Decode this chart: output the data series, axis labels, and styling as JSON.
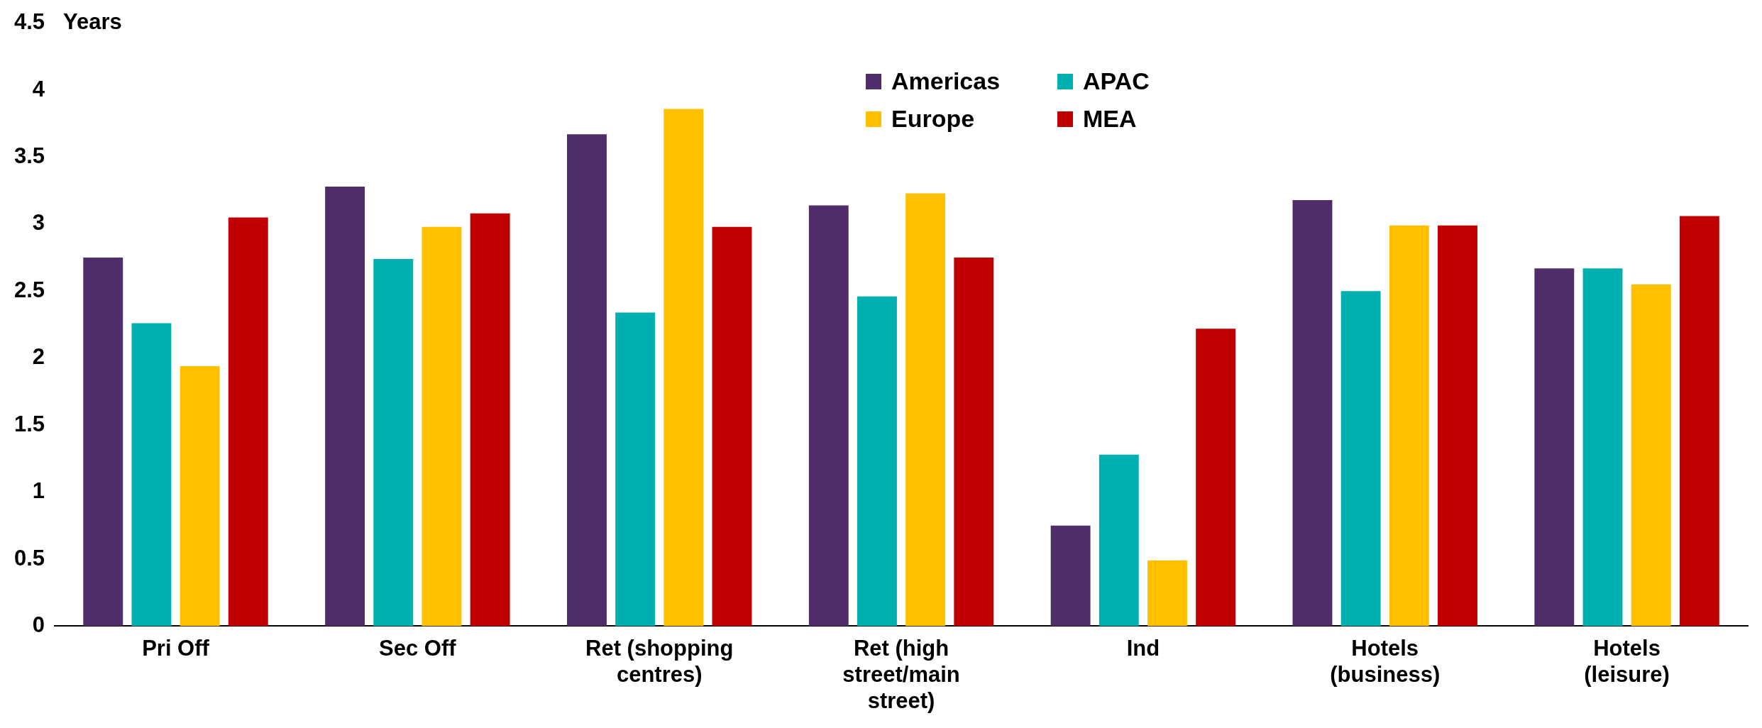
{
  "chart_data": {
    "type": "bar",
    "ylabel": "Years",
    "categories": [
      "Pri Off",
      "Sec Off",
      "Ret (shopping centres)",
      "Ret (high street/main street)",
      "Ind",
      "Hotels (business)",
      "Hotels (leisure)"
    ],
    "series": [
      {
        "name": "Americas",
        "color": "#4f2d69",
        "values": [
          2.75,
          3.28,
          3.67,
          3.14,
          0.75,
          3.18,
          2.67
        ]
      },
      {
        "name": "APAC",
        "color": "#00b0b0",
        "values": [
          2.26,
          2.74,
          2.34,
          2.46,
          1.28,
          2.5,
          2.67
        ]
      },
      {
        "name": "Europe",
        "color": "#ffc000",
        "values": [
          1.94,
          2.98,
          3.86,
          3.23,
          0.49,
          2.99,
          2.55
        ]
      },
      {
        "name": "MEA",
        "color": "#c00000",
        "values": [
          3.05,
          3.08,
          2.98,
          2.75,
          2.22,
          2.99,
          3.06
        ]
      }
    ],
    "ylim": [
      0,
      4.5
    ],
    "yticks": [
      0,
      0.5,
      1,
      1.5,
      2,
      2.5,
      3,
      3.5,
      4,
      4.5
    ],
    "grid": false,
    "legend": "top"
  }
}
